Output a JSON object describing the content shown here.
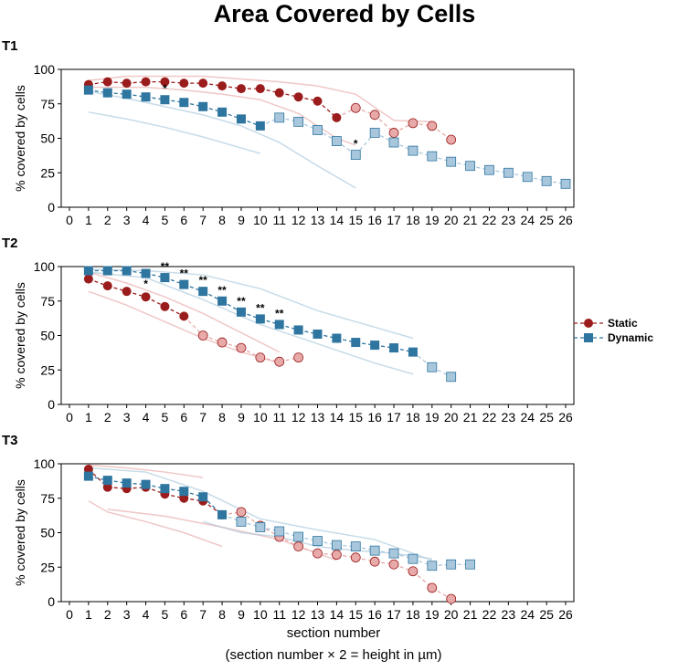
{
  "title": "Area Covered by Cells",
  "xlabel_line1": "section number",
  "xlabel_line2": "(section number × 2 = height in µm)",
  "legend": {
    "static": "Static",
    "dynamic": "Dynamic"
  },
  "colors": {
    "static": "#9b1c1c",
    "dynamic": "#2e75a0",
    "static_faint": "#e8a9a9",
    "dynamic_faint": "#a9c7dc"
  },
  "chart_data": [
    {
      "type": "line",
      "panel": "T1",
      "ylabel": "% covered by cells",
      "xlim": [
        0,
        26
      ],
      "ylim": [
        0,
        100
      ],
      "xticks": [
        0,
        1,
        2,
        3,
        4,
        5,
        6,
        7,
        8,
        9,
        10,
        11,
        12,
        13,
        14,
        15,
        16,
        17,
        18,
        19,
        20,
        21,
        22,
        23,
        24,
        25,
        26
      ],
      "yticks": [
        0,
        25,
        50,
        75,
        100
      ],
      "series": [
        {
          "name": "Static",
          "marker": "circle",
          "x": [
            1,
            2,
            3,
            4,
            5,
            6,
            7,
            8,
            9,
            10,
            11,
            12,
            13,
            14,
            15,
            16,
            17,
            18,
            19,
            20
          ],
          "y": [
            89,
            91,
            90,
            91,
            91,
            90,
            90,
            88,
            86,
            86,
            83,
            80,
            77,
            65,
            72,
            67,
            54,
            61,
            59,
            49
          ],
          "faint_from": 15
        },
        {
          "name": "Dynamic",
          "marker": "square",
          "x": [
            1,
            2,
            3,
            4,
            5,
            6,
            7,
            8,
            9,
            10,
            11,
            12,
            13,
            14,
            15,
            16,
            17,
            18,
            19,
            20,
            21,
            22,
            23,
            24,
            25,
            26
          ],
          "y": [
            85,
            83,
            82,
            80,
            78,
            76,
            73,
            69,
            64,
            59,
            65,
            62,
            56,
            48,
            38,
            54,
            47,
            41,
            37,
            33,
            30,
            27,
            25,
            22,
            19,
            17
          ],
          "faint_from": 11
        }
      ],
      "range_lines": [
        {
          "color": "static",
          "x": [
            1,
            3,
            5,
            7,
            9,
            11,
            13,
            15,
            17,
            19
          ],
          "y": [
            92,
            95,
            95,
            95,
            93,
            91,
            88,
            82,
            63,
            62
          ]
        },
        {
          "color": "static",
          "x": [
            1,
            2,
            4,
            6,
            8,
            10,
            12,
            14,
            15
          ],
          "y": [
            87,
            87,
            87,
            85,
            82,
            78,
            68,
            50,
            45
          ]
        },
        {
          "color": "dynamic",
          "x": [
            1,
            3,
            5,
            7,
            9,
            11,
            13,
            15
          ],
          "y": [
            84,
            79,
            73,
            67,
            59,
            47,
            30,
            14
          ]
        },
        {
          "color": "dynamic",
          "x": [
            1,
            3,
            5,
            7,
            9,
            10
          ],
          "y": [
            69,
            64,
            58,
            51,
            43,
            39
          ]
        }
      ],
      "significance": [
        {
          "x": 5,
          "label": "*"
        },
        {
          "x": 15,
          "label": "*"
        }
      ]
    },
    {
      "type": "line",
      "panel": "T2",
      "ylabel": "% covered by cells",
      "xlim": [
        0,
        26
      ],
      "ylim": [
        0,
        100
      ],
      "xticks": [
        0,
        1,
        2,
        3,
        4,
        5,
        6,
        7,
        8,
        9,
        10,
        11,
        12,
        13,
        14,
        15,
        16,
        17,
        18,
        19,
        20,
        21,
        22,
        23,
        24,
        25,
        26
      ],
      "yticks": [
        0,
        25,
        50,
        75,
        100
      ],
      "series": [
        {
          "name": "Static",
          "marker": "circle",
          "x": [
            1,
            2,
            3,
            4,
            5,
            6,
            7,
            8,
            9,
            10,
            11,
            12
          ],
          "y": [
            91,
            86,
            82,
            78,
            71,
            64,
            50,
            45,
            41,
            34,
            31,
            34
          ],
          "faint_from": 7
        },
        {
          "name": "Dynamic",
          "marker": "square",
          "x": [
            1,
            2,
            3,
            4,
            5,
            6,
            7,
            8,
            9,
            10,
            11,
            12,
            13,
            14,
            15,
            16,
            17,
            18,
            19,
            20
          ],
          "y": [
            97,
            97,
            97,
            95,
            92,
            87,
            82,
            75,
            67,
            62,
            58,
            54,
            51,
            48,
            45,
            43,
            41,
            38,
            27,
            20
          ],
          "faint_from": 19
        }
      ],
      "range_lines": [
        {
          "color": "static",
          "x": [
            1,
            3,
            5,
            7,
            9,
            11
          ],
          "y": [
            82,
            72,
            60,
            48,
            38,
            30
          ]
        },
        {
          "color": "static",
          "x": [
            1,
            3,
            5,
            7,
            9,
            11
          ],
          "y": [
            96,
            88,
            78,
            66,
            52,
            38
          ]
        },
        {
          "color": "dynamic",
          "x": [
            1,
            4,
            7,
            10,
            13,
            16,
            18
          ],
          "y": [
            98,
            97,
            94,
            84,
            68,
            56,
            48
          ]
        },
        {
          "color": "dynamic",
          "x": [
            1,
            4,
            7,
            10,
            13,
            16,
            18
          ],
          "y": [
            96,
            92,
            76,
            58,
            44,
            30,
            22
          ]
        }
      ],
      "significance": [
        {
          "x": 4,
          "label": "*"
        },
        {
          "x": 5,
          "label": "**"
        },
        {
          "x": 6,
          "label": "**"
        },
        {
          "x": 7,
          "label": "**"
        },
        {
          "x": 8,
          "label": "**"
        },
        {
          "x": 9,
          "label": "**"
        },
        {
          "x": 10,
          "label": "**"
        },
        {
          "x": 11,
          "label": "**"
        }
      ]
    },
    {
      "type": "line",
      "panel": "T3",
      "ylabel": "% covered by cells",
      "xlim": [
        0,
        26
      ],
      "ylim": [
        0,
        100
      ],
      "xticks": [
        0,
        1,
        2,
        3,
        4,
        5,
        6,
        7,
        8,
        9,
        10,
        11,
        12,
        13,
        14,
        15,
        16,
        17,
        18,
        19,
        20,
        21,
        22,
        23,
        24,
        25,
        26
      ],
      "yticks": [
        0,
        25,
        50,
        75,
        100
      ],
      "series": [
        {
          "name": "Static",
          "marker": "circle",
          "x": [
            1,
            2,
            3,
            4,
            5,
            6,
            7,
            8,
            9,
            10,
            11,
            12,
            13,
            14,
            15,
            16,
            17,
            18,
            19,
            20
          ],
          "y": [
            96,
            83,
            82,
            83,
            78,
            75,
            73,
            63,
            65,
            55,
            47,
            40,
            35,
            34,
            32,
            29,
            27,
            22,
            10,
            2
          ],
          "faint_from": 9
        },
        {
          "name": "Dynamic",
          "marker": "square",
          "x": [
            1,
            2,
            3,
            4,
            5,
            6,
            7,
            8,
            9,
            10,
            11,
            12,
            13,
            14,
            15,
            16,
            17,
            18,
            19,
            20,
            21
          ],
          "y": [
            91,
            88,
            86,
            85,
            82,
            80,
            76,
            63,
            58,
            54,
            51,
            47,
            44,
            41,
            40,
            37,
            35,
            31,
            26,
            27,
            27
          ],
          "faint_from": 9
        }
      ],
      "range_lines": [
        {
          "color": "static",
          "x": [
            1,
            2,
            4,
            6,
            8
          ],
          "y": [
            73,
            65,
            58,
            50,
            40
          ]
        },
        {
          "color": "static",
          "x": [
            1,
            3,
            5,
            7
          ],
          "y": [
            99,
            97,
            94,
            90
          ]
        },
        {
          "color": "static",
          "x": [
            2,
            5,
            8,
            11,
            14
          ],
          "y": [
            67,
            62,
            54,
            45,
            30
          ]
        },
        {
          "color": "dynamic",
          "x": [
            1,
            4,
            7,
            10,
            13,
            16,
            19
          ],
          "y": [
            97,
            94,
            80,
            60,
            52,
            45,
            30
          ]
        },
        {
          "color": "dynamic",
          "x": [
            7,
            9,
            11,
            13,
            15,
            17,
            19
          ],
          "y": [
            58,
            50,
            47,
            40,
            37,
            35,
            31
          ]
        }
      ],
      "significance": []
    }
  ]
}
